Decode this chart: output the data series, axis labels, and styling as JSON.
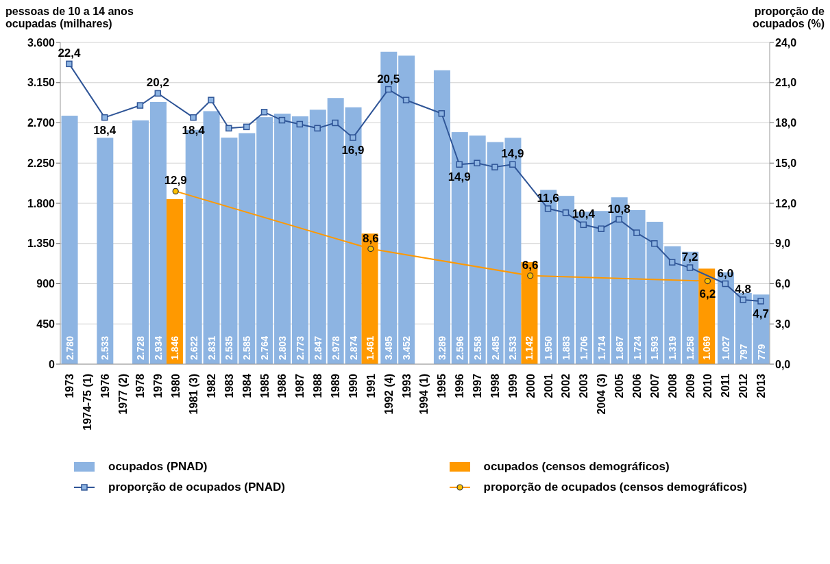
{
  "chart_data": {
    "type": "bar",
    "ylabel": "pessoas de 10 a 14 anos ocupadas (milhares)",
    "y2label": "proporção de ocupados (%)",
    "categories": [
      "1973",
      "1974-75 (1)",
      "1976",
      "1977 (2)",
      "1978",
      "1979",
      "1980",
      "1981 (3)",
      "1982",
      "1983",
      "1984",
      "1985",
      "1986",
      "1987",
      "1988",
      "1989",
      "1990",
      "1991",
      "1992 (4)",
      "1993",
      "1994 (1)",
      "1995",
      "1996",
      "1997",
      "1998",
      "1999",
      "2000",
      "2001",
      "2002",
      "2003",
      "2004 (3)",
      "2005",
      "2006",
      "2007",
      "2008",
      "2009",
      "2010",
      "2011",
      "2012",
      "2013"
    ],
    "series": [
      {
        "name": "ocupados (PNAD)",
        "color": "#8db4e2",
        "values": [
          2780,
          null,
          2533,
          null,
          2728,
          2934,
          null,
          2622,
          2831,
          2535,
          2585,
          2764,
          2803,
          2773,
          2847,
          2978,
          2874,
          null,
          3495,
          3452,
          null,
          3289,
          2596,
          2558,
          2485,
          2533,
          null,
          1950,
          1883,
          1706,
          1714,
          1867,
          1724,
          1593,
          1319,
          1258,
          null,
          1027,
          797,
          779
        ],
        "value_labels": [
          "2.780",
          null,
          "2.533",
          null,
          "2.728",
          "2.934",
          null,
          "2.622",
          "2.831",
          "2.535",
          "2.585",
          "2.764",
          "2.803",
          "2.773",
          "2.847",
          "2.978",
          "2.874",
          null,
          "3.495",
          "3.452",
          null,
          "3.289",
          "2.596",
          "2.558",
          "2.485",
          "2.533",
          null,
          "1.950",
          "1.883",
          "1.706",
          "1.714",
          "1.867",
          "1.724",
          "1.593",
          "1.319",
          "1.258",
          null,
          "1.027",
          "797",
          "779"
        ]
      },
      {
        "name": "ocupados (censos demográficos)",
        "color": "#ff9900",
        "values": [
          null,
          null,
          null,
          null,
          null,
          null,
          1846,
          null,
          null,
          null,
          null,
          null,
          null,
          null,
          null,
          null,
          null,
          1461,
          null,
          null,
          null,
          null,
          null,
          null,
          null,
          null,
          1142,
          null,
          null,
          null,
          null,
          null,
          null,
          null,
          null,
          null,
          1069,
          null,
          null,
          null
        ],
        "value_labels": [
          null,
          null,
          null,
          null,
          null,
          null,
          "1.846",
          null,
          null,
          null,
          null,
          null,
          null,
          null,
          null,
          null,
          null,
          "1.461",
          null,
          null,
          null,
          null,
          null,
          null,
          null,
          null,
          "1.142",
          null,
          null,
          null,
          null,
          null,
          null,
          null,
          null,
          null,
          "1.069",
          null,
          null,
          null
        ]
      },
      {
        "name": "proporção de ocupados (PNAD)",
        "type": "line",
        "axis": "y2",
        "color": "#2f5597",
        "marker": "square",
        "values": [
          22.4,
          null,
          18.4,
          null,
          19.3,
          20.2,
          null,
          18.4,
          19.7,
          17.6,
          17.7,
          18.8,
          18.2,
          17.9,
          17.6,
          18.0,
          16.9,
          null,
          20.5,
          19.7,
          null,
          18.7,
          14.9,
          15.0,
          14.7,
          14.9,
          null,
          11.6,
          11.3,
          10.4,
          10.1,
          10.8,
          9.8,
          9.0,
          7.6,
          7.2,
          null,
          6.0,
          4.8,
          4.7
        ],
        "value_labels": [
          "22,4",
          null,
          "18,4",
          null,
          null,
          "20,2",
          null,
          "18,4",
          null,
          null,
          null,
          null,
          null,
          null,
          null,
          null,
          "16,9",
          null,
          "20,5",
          null,
          null,
          null,
          "14,9",
          null,
          null,
          "14,9",
          null,
          "11,6",
          null,
          "10,4",
          null,
          "10,8",
          null,
          null,
          null,
          "7,2",
          null,
          "6,0",
          "4,8",
          "4,7"
        ]
      },
      {
        "name": "proporção de ocupados (censos demográficos)",
        "type": "line",
        "axis": "y2",
        "color": "#ff9900",
        "marker": "circle",
        "values": [
          null,
          null,
          null,
          null,
          null,
          null,
          12.9,
          null,
          null,
          null,
          null,
          null,
          null,
          null,
          null,
          null,
          null,
          8.6,
          null,
          null,
          null,
          null,
          null,
          null,
          null,
          null,
          6.6,
          null,
          null,
          null,
          null,
          null,
          null,
          null,
          null,
          null,
          6.2,
          null,
          null,
          null
        ],
        "value_labels": [
          null,
          null,
          null,
          null,
          null,
          null,
          "12,9",
          null,
          null,
          null,
          null,
          null,
          null,
          null,
          null,
          null,
          null,
          "8,6",
          null,
          null,
          null,
          null,
          null,
          null,
          null,
          null,
          "6,6",
          null,
          null,
          null,
          null,
          null,
          null,
          null,
          null,
          null,
          "6,2",
          null,
          null,
          null
        ]
      }
    ],
    "ylim": [
      0,
      3600
    ],
    "yticks": [
      {
        "value": 0,
        "label": "0"
      },
      {
        "value": 450,
        "label": "450"
      },
      {
        "value": 900,
        "label": "900"
      },
      {
        "value": 1350,
        "label": "1.350"
      },
      {
        "value": 1800,
        "label": "1.800"
      },
      {
        "value": 2250,
        "label": "2.250"
      },
      {
        "value": 2700,
        "label": "2.700"
      },
      {
        "value": 3150,
        "label": "3.150"
      },
      {
        "value": 3600,
        "label": "3.600"
      }
    ],
    "y2lim": [
      0,
      24
    ],
    "y2ticks": [
      {
        "value": 0,
        "label": "0,0"
      },
      {
        "value": 3,
        "label": "3,0"
      },
      {
        "value": 6,
        "label": "6,0"
      },
      {
        "value": 9,
        "label": "9,0"
      },
      {
        "value": 12,
        "label": "12,0"
      },
      {
        "value": 15,
        "label": "15,0"
      },
      {
        "value": 18,
        "label": "18,0"
      },
      {
        "value": 21,
        "label": "21,0"
      },
      {
        "value": 24,
        "label": "24,0"
      }
    ],
    "grid": "y",
    "legend": "bottom"
  }
}
